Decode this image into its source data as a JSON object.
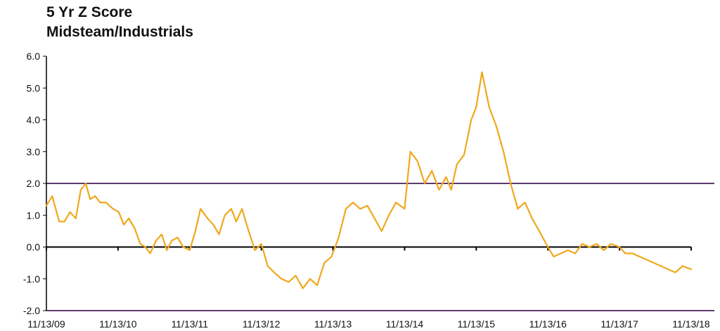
{
  "chart_data": {
    "type": "line",
    "title": "5 Yr Z Score",
    "subtitle": "Midsteam/Industrials",
    "xlabel": "",
    "ylabel": "",
    "ylim": [
      -2.0,
      6.0
    ],
    "yticks": [
      "6.0",
      "5.0",
      "4.0",
      "3.0",
      "2.0",
      "1.0",
      "0.0",
      "-1.0",
      "-2.0"
    ],
    "xticks": [
      "11/13/09",
      "11/13/10",
      "11/13/11",
      "11/13/12",
      "11/13/13",
      "11/13/14",
      "11/13/15",
      "11/13/16",
      "11/13/17",
      "11/13/18"
    ],
    "x_domain_years": [
      2009.87,
      2018.87
    ],
    "reference_lines": [
      2.0,
      -2.0
    ],
    "grid": false,
    "colors": {
      "series": "#F0A81C",
      "reference": "#5E3B6E",
      "axis": "#000000"
    },
    "series": [
      {
        "x": [
          2009.87,
          2009.95,
          2010.05,
          2010.12,
          2010.2,
          2010.28,
          2010.35,
          2010.42,
          2010.48,
          2010.55,
          2010.62,
          2010.7,
          2010.8,
          2010.88,
          2010.95,
          2011.02,
          2011.1,
          2011.18,
          2011.25,
          2011.32,
          2011.4,
          2011.48,
          2011.55,
          2011.62,
          2011.7,
          2011.78,
          2011.87,
          2011.95,
          2012.02,
          2012.12,
          2012.2,
          2012.28,
          2012.36,
          2012.45,
          2012.52,
          2012.6,
          2012.68,
          2012.78,
          2012.87,
          2012.96,
          2013.05,
          2013.15,
          2013.25,
          2013.35,
          2013.45,
          2013.55,
          2013.65,
          2013.75,
          2013.85,
          2013.95,
          2014.05,
          2014.15,
          2014.25,
          2014.35,
          2014.45,
          2014.55,
          2014.65,
          2014.75,
          2014.87,
          2014.95,
          2015.05,
          2015.15,
          2015.25,
          2015.35,
          2015.45,
          2015.52,
          2015.6,
          2015.7,
          2015.8,
          2015.87,
          2015.95,
          2016.05,
          2016.15,
          2016.25,
          2016.35,
          2016.45,
          2016.55,
          2016.65,
          2016.75,
          2016.87,
          2016.95,
          2017.05,
          2017.15,
          2017.25,
          2017.35,
          2017.45,
          2017.55,
          2017.65,
          2017.75,
          2017.87,
          2017.95,
          2018.05,
          2018.15,
          2018.25,
          2018.35,
          2018.45,
          2018.55,
          2018.65,
          2018.75,
          2018.87
        ],
        "y": [
          1.3,
          1.6,
          0.8,
          0.8,
          1.1,
          0.9,
          1.8,
          2.0,
          1.5,
          1.6,
          1.4,
          1.4,
          1.2,
          1.1,
          0.7,
          0.9,
          0.6,
          0.1,
          0.0,
          -0.2,
          0.2,
          0.4,
          -0.1,
          0.2,
          0.3,
          0.0,
          -0.1,
          0.5,
          1.2,
          0.9,
          0.7,
          0.4,
          1.0,
          1.2,
          0.8,
          1.2,
          0.6,
          -0.1,
          0.1,
          -0.6,
          -0.8,
          -1.0,
          -1.1,
          -0.9,
          -1.3,
          -1.0,
          -1.2,
          -0.5,
          -0.3,
          0.3,
          1.2,
          1.4,
          1.2,
          1.3,
          0.9,
          0.5,
          1.0,
          1.4,
          1.2,
          3.0,
          2.7,
          2.0,
          2.4,
          1.8,
          2.2,
          1.8,
          2.6,
          2.9,
          4.0,
          4.4,
          5.5,
          4.4,
          3.8,
          3.0,
          2.0,
          1.2,
          1.4,
          0.9,
          0.5,
          0.0,
          -0.3,
          -0.2,
          -0.1,
          -0.2,
          0.1,
          0.0,
          0.1,
          -0.1,
          0.1,
          0.0,
          -0.2,
          -0.2,
          -0.3,
          -0.4,
          -0.5,
          -0.6,
          -0.7,
          -0.8,
          -0.6,
          -0.7
        ]
      }
    ]
  }
}
